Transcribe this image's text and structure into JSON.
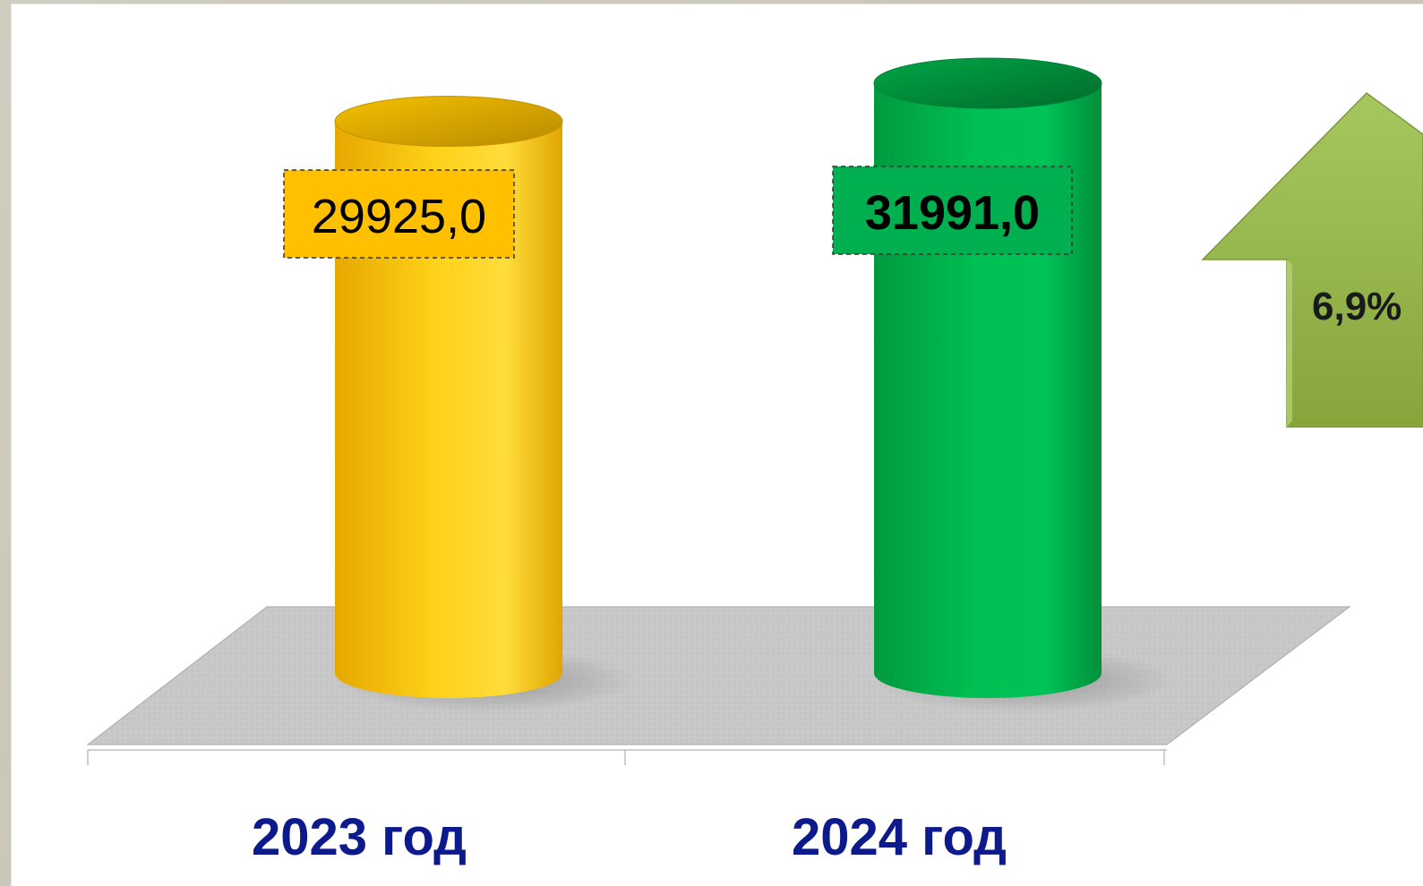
{
  "chart_data": {
    "type": "bar",
    "shape": "cylinder-3d",
    "categories": [
      "2023 год",
      "2024 год"
    ],
    "values": [
      29925.0,
      31991.0
    ],
    "value_labels": [
      "29925,0",
      "31991,0"
    ],
    "series": [
      {
        "values": [
          29925.0,
          31991.0
        ]
      }
    ],
    "bar_colors": [
      "#ffc400",
      "#00b050"
    ],
    "label_box_colors": [
      "#ffc000",
      "#00b050"
    ],
    "category_label_color": "#0d1a8c",
    "grid": false,
    "legend": "none",
    "title": "",
    "xlabel": "",
    "ylabel": ""
  },
  "growth_indicator": {
    "label": "6,9%",
    "direction": "up",
    "color": "#9bbb59",
    "icon": "up-arrow-icon"
  }
}
